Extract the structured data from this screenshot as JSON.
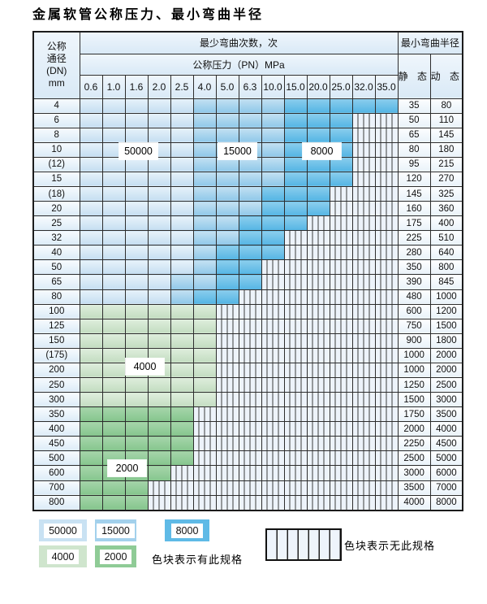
{
  "title": "金属软管公称压力、最小弯曲半径",
  "table": {
    "corner_header_lines": [
      "公称",
      "通径",
      "(DN)",
      "mm"
    ],
    "bend_cycles_header": "最少弯曲次数，次",
    "pressure_header": "公称压力（PN）MPa",
    "radius_header": "最小弯曲半径",
    "static_label": "静 态",
    "dynamic_label": "动 态",
    "pressure_columns": [
      "0.6",
      "1.0",
      "1.6",
      "2.0",
      "2.5",
      "4.0",
      "5.0",
      "6.3",
      "10.0",
      "15.0",
      "20.0",
      "25.0",
      "32.0",
      "35.0"
    ],
    "cell_codes_legend": {
      "b1": "50000 cycles (lightest blue)",
      "b2": "15000 cycles (medium blue)",
      "b3": "8000 cycles (dark blue)",
      "g1": "4000 cycles (light green)",
      "g2": "2000 cycles (dark green)",
      "h": "no specification (hatched)"
    },
    "rows": [
      {
        "dn": "4",
        "cells": [
          "b1",
          "b1",
          "b1",
          "b1",
          "b1",
          "b2",
          "b2",
          "b2",
          "b2",
          "b3",
          "b3",
          "b3",
          "b3",
          "b3"
        ],
        "static": "35",
        "dynamic": "80"
      },
      {
        "dn": "6",
        "cells": [
          "b1",
          "b1",
          "b1",
          "b1",
          "b1",
          "b2",
          "b2",
          "b2",
          "b2",
          "b3",
          "b3",
          "b3",
          "h",
          "h"
        ],
        "static": "50",
        "dynamic": "110"
      },
      {
        "dn": "8",
        "cells": [
          "b1",
          "b1",
          "b1",
          "b1",
          "b1",
          "b2",
          "b2",
          "b2",
          "b2",
          "b3",
          "b3",
          "b3",
          "h",
          "h"
        ],
        "static": "65",
        "dynamic": "145"
      },
      {
        "dn": "10",
        "cells": [
          "b1",
          "b1",
          "b1",
          "b1",
          "b1",
          "b2",
          "b2",
          "b2",
          "b2",
          "b3",
          "b3",
          "b3",
          "h",
          "h"
        ],
        "static": "80",
        "dynamic": "180"
      },
      {
        "dn": "(12)",
        "cells": [
          "b1",
          "b1",
          "b1",
          "b1",
          "b1",
          "b2",
          "b2",
          "b2",
          "b2",
          "b3",
          "b3",
          "b3",
          "h",
          "h"
        ],
        "static": "95",
        "dynamic": "215"
      },
      {
        "dn": "15",
        "cells": [
          "b1",
          "b1",
          "b1",
          "b1",
          "b1",
          "b2",
          "b2",
          "b2",
          "b2",
          "b3",
          "b3",
          "b3",
          "h",
          "h"
        ],
        "static": "120",
        "dynamic": "270"
      },
      {
        "dn": "(18)",
        "cells": [
          "b1",
          "b1",
          "b1",
          "b1",
          "b1",
          "b2",
          "b2",
          "b2",
          "b3",
          "b3",
          "b3",
          "h",
          "h",
          "h"
        ],
        "static": "145",
        "dynamic": "325"
      },
      {
        "dn": "20",
        "cells": [
          "b1",
          "b1",
          "b1",
          "b1",
          "b1",
          "b2",
          "b2",
          "b2",
          "b3",
          "b3",
          "b3",
          "h",
          "h",
          "h"
        ],
        "static": "160",
        "dynamic": "360"
      },
      {
        "dn": "25",
        "cells": [
          "b1",
          "b1",
          "b1",
          "b1",
          "b1",
          "b2",
          "b2",
          "b3",
          "b3",
          "b3",
          "h",
          "h",
          "h",
          "h"
        ],
        "static": "175",
        "dynamic": "400"
      },
      {
        "dn": "32",
        "cells": [
          "b1",
          "b1",
          "b1",
          "b1",
          "b1",
          "b2",
          "b2",
          "b3",
          "b3",
          "h",
          "h",
          "h",
          "h",
          "h"
        ],
        "static": "225",
        "dynamic": "510"
      },
      {
        "dn": "40",
        "cells": [
          "b1",
          "b1",
          "b1",
          "b1",
          "b1",
          "b2",
          "b3",
          "b3",
          "b3",
          "h",
          "h",
          "h",
          "h",
          "h"
        ],
        "static": "280",
        "dynamic": "640"
      },
      {
        "dn": "50",
        "cells": [
          "b1",
          "b1",
          "b1",
          "b1",
          "b1",
          "b2",
          "b3",
          "b3",
          "h",
          "h",
          "h",
          "h",
          "h",
          "h"
        ],
        "static": "350",
        "dynamic": "800"
      },
      {
        "dn": "65",
        "cells": [
          "b1",
          "b1",
          "b1",
          "b1",
          "b2",
          "b2",
          "b3",
          "b3",
          "h",
          "h",
          "h",
          "h",
          "h",
          "h"
        ],
        "static": "390",
        "dynamic": "845"
      },
      {
        "dn": "80",
        "cells": [
          "b1",
          "b1",
          "b1",
          "b1",
          "b2",
          "b3",
          "b3",
          "h",
          "h",
          "h",
          "h",
          "h",
          "h",
          "h"
        ],
        "static": "480",
        "dynamic": "1000"
      },
      {
        "dn": "100",
        "cells": [
          "g1",
          "g1",
          "g1",
          "g1",
          "g1",
          "g1",
          "h",
          "h",
          "h",
          "h",
          "h",
          "h",
          "h",
          "h"
        ],
        "static": "600",
        "dynamic": "1200"
      },
      {
        "dn": "125",
        "cells": [
          "g1",
          "g1",
          "g1",
          "g1",
          "g1",
          "g1",
          "h",
          "h",
          "h",
          "h",
          "h",
          "h",
          "h",
          "h"
        ],
        "static": "750",
        "dynamic": "1500"
      },
      {
        "dn": "150",
        "cells": [
          "g1",
          "g1",
          "g1",
          "g1",
          "g1",
          "g1",
          "h",
          "h",
          "h",
          "h",
          "h",
          "h",
          "h",
          "h"
        ],
        "static": "900",
        "dynamic": "1800"
      },
      {
        "dn": "(175)",
        "cells": [
          "g1",
          "g1",
          "g1",
          "g1",
          "g1",
          "g1",
          "h",
          "h",
          "h",
          "h",
          "h",
          "h",
          "h",
          "h"
        ],
        "static": "1000",
        "dynamic": "2000"
      },
      {
        "dn": "200",
        "cells": [
          "g1",
          "g1",
          "g1",
          "g1",
          "g1",
          "g1",
          "h",
          "h",
          "h",
          "h",
          "h",
          "h",
          "h",
          "h"
        ],
        "static": "1000",
        "dynamic": "2000"
      },
      {
        "dn": "250",
        "cells": [
          "g1",
          "g1",
          "g1",
          "g1",
          "g1",
          "g1",
          "h",
          "h",
          "h",
          "h",
          "h",
          "h",
          "h",
          "h"
        ],
        "static": "1250",
        "dynamic": "2500"
      },
      {
        "dn": "300",
        "cells": [
          "g1",
          "g1",
          "g1",
          "g1",
          "g1",
          "g1",
          "h",
          "h",
          "h",
          "h",
          "h",
          "h",
          "h",
          "h"
        ],
        "static": "1500",
        "dynamic": "3000"
      },
      {
        "dn": "350",
        "cells": [
          "g2",
          "g2",
          "g2",
          "g2",
          "g2",
          "h",
          "h",
          "h",
          "h",
          "h",
          "h",
          "h",
          "h",
          "h"
        ],
        "static": "1750",
        "dynamic": "3500"
      },
      {
        "dn": "400",
        "cells": [
          "g2",
          "g2",
          "g2",
          "g2",
          "g2",
          "h",
          "h",
          "h",
          "h",
          "h",
          "h",
          "h",
          "h",
          "h"
        ],
        "static": "2000",
        "dynamic": "4000"
      },
      {
        "dn": "450",
        "cells": [
          "g2",
          "g2",
          "g2",
          "g2",
          "g2",
          "h",
          "h",
          "h",
          "h",
          "h",
          "h",
          "h",
          "h",
          "h"
        ],
        "static": "2250",
        "dynamic": "4500"
      },
      {
        "dn": "500",
        "cells": [
          "g2",
          "g2",
          "g2",
          "g2",
          "g2",
          "h",
          "h",
          "h",
          "h",
          "h",
          "h",
          "h",
          "h",
          "h"
        ],
        "static": "2500",
        "dynamic": "5000"
      },
      {
        "dn": "600",
        "cells": [
          "g2",
          "g2",
          "g2",
          "g2",
          "h",
          "h",
          "h",
          "h",
          "h",
          "h",
          "h",
          "h",
          "h",
          "h"
        ],
        "static": "3000",
        "dynamic": "6000"
      },
      {
        "dn": "700",
        "cells": [
          "g2",
          "g2",
          "g2",
          "h",
          "h",
          "h",
          "h",
          "h",
          "h",
          "h",
          "h",
          "h",
          "h",
          "h"
        ],
        "static": "3500",
        "dynamic": "7000"
      },
      {
        "dn": "800",
        "cells": [
          "g2",
          "g2",
          "g2",
          "h",
          "h",
          "h",
          "h",
          "h",
          "h",
          "h",
          "h",
          "h",
          "h",
          "h"
        ],
        "static": "4000",
        "dynamic": "8000"
      }
    ]
  },
  "overlay_labels": {
    "l50000": "50000",
    "l15000": "15000",
    "l8000": "8000",
    "l4000": "4000",
    "l2000": "2000"
  },
  "legend": {
    "sw50000": "50000",
    "sw15000": "15000",
    "sw8000": "8000",
    "sw4000": "4000",
    "sw2000": "2000",
    "has_spec_text": "色块表示有此规格",
    "no_spec_text": "色块表示无此规格"
  },
  "colors": {
    "blue_50000": "#c9e2f3",
    "blue_15000": "#a3d1ec",
    "blue_8000": "#5fbae6",
    "green_4000": "#cfe5cd",
    "green_2000": "#8fcb96",
    "hatch_bg": "#edf3fa",
    "grid_line": "#2d2d2d"
  }
}
